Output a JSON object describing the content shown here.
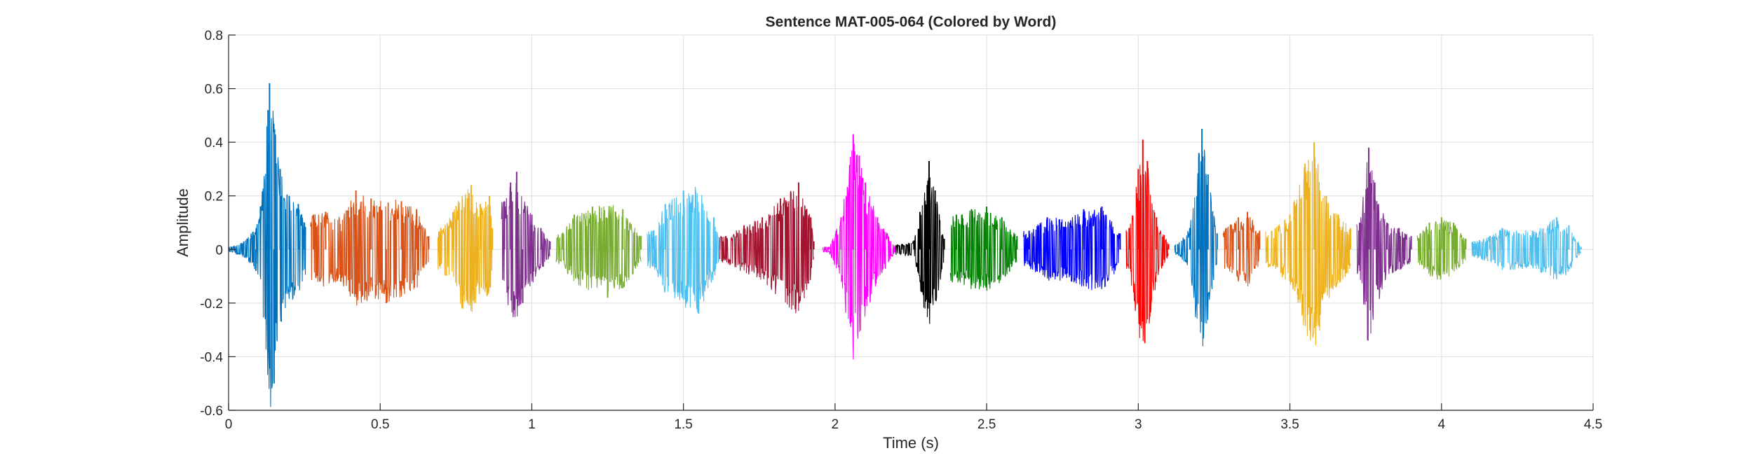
{
  "chart_data": {
    "type": "line",
    "title": "Sentence MAT-005-064 (Colored by Word)",
    "xlabel": "Time (s)",
    "ylabel": "Amplitude",
    "xlim": [
      0,
      4.5
    ],
    "ylim": [
      -0.6,
      0.8
    ],
    "grid": true,
    "xticks": [
      0,
      0.5,
      1,
      1.5,
      2,
      2.5,
      3,
      3.5,
      4,
      4.5
    ],
    "xtick_labels": [
      "0",
      "0.5",
      "1",
      "1.5",
      "2",
      "2.5",
      "3",
      "3.5",
      "4",
      "4.5"
    ],
    "yticks": [
      -0.6,
      -0.4,
      -0.2,
      0,
      0.2,
      0.4,
      0.6,
      0.8
    ],
    "ytick_labels": [
      "-0.6",
      "-0.4",
      "-0.2",
      "0",
      "0.2",
      "0.4",
      "0.6",
      "0.8"
    ],
    "series": [
      {
        "start": 0.0,
        "end": 0.255,
        "color": "#0072BD",
        "peaks": [
          [
            0.01,
            0.01
          ],
          [
            0.05,
            0.03
          ],
          [
            0.09,
            -0.08
          ],
          [
            0.105,
            0.16
          ],
          [
            0.13,
            0.52
          ],
          [
            0.135,
            0.62
          ],
          [
            0.15,
            -0.5
          ],
          [
            0.17,
            0.3
          ],
          [
            0.2,
            0.2
          ],
          [
            0.23,
            0.17
          ],
          [
            0.25,
            0.1
          ]
        ]
      },
      {
        "start": 0.27,
        "end": 0.66,
        "color": "#D95319",
        "peaks": [
          [
            0.28,
            0.13
          ],
          [
            0.32,
            0.14
          ],
          [
            0.37,
            -0.12
          ],
          [
            0.42,
            0.22
          ],
          [
            0.47,
            0.19
          ],
          [
            0.52,
            -0.2
          ],
          [
            0.57,
            0.18
          ],
          [
            0.62,
            0.15
          ],
          [
            0.66,
            0.05
          ]
        ]
      },
      {
        "start": 0.69,
        "end": 0.87,
        "color": "#EDB120",
        "peaks": [
          [
            0.7,
            0.08
          ],
          [
            0.74,
            0.14
          ],
          [
            0.77,
            -0.22
          ],
          [
            0.8,
            0.24
          ],
          [
            0.83,
            0.17
          ],
          [
            0.86,
            0.2
          ],
          [
            0.87,
            0.08
          ]
        ]
      },
      {
        "start": 0.9,
        "end": 1.06,
        "color": "#7E2F8E",
        "peaks": [
          [
            0.91,
            0.18
          ],
          [
            0.93,
            0.25
          ],
          [
            0.95,
            0.29
          ],
          [
            0.97,
            -0.2
          ],
          [
            1.0,
            0.13
          ],
          [
            1.03,
            0.08
          ],
          [
            1.06,
            0.03
          ]
        ]
      },
      {
        "start": 1.08,
        "end": 1.36,
        "color": "#77AC30",
        "peaks": [
          [
            1.1,
            0.06
          ],
          [
            1.14,
            0.13
          ],
          [
            1.2,
            0.16
          ],
          [
            1.25,
            -0.18
          ],
          [
            1.3,
            0.15
          ],
          [
            1.36,
            0.05
          ]
        ]
      },
      {
        "start": 1.38,
        "end": 1.62,
        "color": "#4DBEEE",
        "peaks": [
          [
            1.4,
            0.07
          ],
          [
            1.44,
            0.17
          ],
          [
            1.5,
            0.22
          ],
          [
            1.55,
            -0.24
          ],
          [
            1.6,
            0.12
          ],
          [
            1.62,
            0.04
          ]
        ]
      },
      {
        "start": 1.62,
        "end": 1.93,
        "color": "#A2142F",
        "peaks": [
          [
            1.64,
            0.05
          ],
          [
            1.7,
            0.09
          ],
          [
            1.76,
            0.12
          ],
          [
            1.82,
            0.19
          ],
          [
            1.88,
            0.25
          ],
          [
            1.92,
            0.12
          ],
          [
            1.93,
            0.03
          ]
        ]
      },
      {
        "start": 1.96,
        "end": 2.2,
        "color": "#FF00FF",
        "peaks": [
          [
            1.98,
            0.01
          ],
          [
            2.02,
            0.12
          ],
          [
            2.06,
            0.43
          ],
          [
            2.08,
            0.35
          ],
          [
            2.1,
            0.25
          ],
          [
            2.14,
            0.12
          ],
          [
            2.2,
            0.01
          ]
        ]
      },
      {
        "start": 2.2,
        "end": 2.36,
        "color": "#000000",
        "peaks": [
          [
            2.22,
            0.02
          ],
          [
            2.26,
            0.03
          ],
          [
            2.28,
            0.14
          ],
          [
            2.31,
            0.33
          ],
          [
            2.33,
            0.22
          ],
          [
            2.36,
            0.04
          ]
        ]
      },
      {
        "start": 2.38,
        "end": 2.6,
        "color": "#008000",
        "peaks": [
          [
            2.4,
            0.13
          ],
          [
            2.45,
            0.15
          ],
          [
            2.5,
            0.16
          ],
          [
            2.55,
            0.12
          ],
          [
            2.6,
            0.05
          ]
        ]
      },
      {
        "start": 2.62,
        "end": 2.94,
        "color": "#0000FF",
        "peaks": [
          [
            2.64,
            0.07
          ],
          [
            2.7,
            0.12
          ],
          [
            2.78,
            -0.12
          ],
          [
            2.82,
            0.15
          ],
          [
            2.88,
            0.16
          ],
          [
            2.94,
            0.06
          ]
        ]
      },
      {
        "start": 2.96,
        "end": 3.1,
        "color": "#FF0000",
        "peaks": [
          [
            2.97,
            0.08
          ],
          [
            3.0,
            0.3
          ],
          [
            3.015,
            0.41
          ],
          [
            3.03,
            0.33
          ],
          [
            3.06,
            0.12
          ],
          [
            3.1,
            0.02
          ]
        ]
      },
      {
        "start": 3.12,
        "end": 3.26,
        "color": "#0072BD",
        "peaks": [
          [
            3.13,
            0.02
          ],
          [
            3.17,
            0.08
          ],
          [
            3.2,
            0.36
          ],
          [
            3.21,
            0.45
          ],
          [
            3.23,
            0.28
          ],
          [
            3.26,
            0.06
          ]
        ]
      },
      {
        "start": 3.28,
        "end": 3.4,
        "color": "#D95319",
        "peaks": [
          [
            3.29,
            0.08
          ],
          [
            3.33,
            0.12
          ],
          [
            3.36,
            0.14
          ],
          [
            3.4,
            0.07
          ]
        ]
      },
      {
        "start": 3.42,
        "end": 3.7,
        "color": "#EDB120",
        "peaks": [
          [
            3.44,
            0.07
          ],
          [
            3.5,
            0.13
          ],
          [
            3.55,
            0.32
          ],
          [
            3.58,
            0.4
          ],
          [
            3.62,
            0.2
          ],
          [
            3.66,
            0.13
          ],
          [
            3.7,
            0.08
          ]
        ]
      },
      {
        "start": 3.72,
        "end": 3.9,
        "color": "#7E2F8E",
        "peaks": [
          [
            3.73,
            0.1
          ],
          [
            3.76,
            0.38
          ],
          [
            3.78,
            0.25
          ],
          [
            3.82,
            0.1
          ],
          [
            3.86,
            0.08
          ],
          [
            3.9,
            0.05
          ]
        ]
      },
      {
        "start": 3.92,
        "end": 4.08,
        "color": "#77AC30",
        "peaks": [
          [
            3.93,
            0.06
          ],
          [
            3.96,
            0.1
          ],
          [
            4.0,
            0.12
          ],
          [
            4.04,
            0.1
          ],
          [
            4.08,
            0.04
          ]
        ]
      },
      {
        "start": 4.1,
        "end": 4.46,
        "color": "#4DBEEE",
        "peaks": [
          [
            4.11,
            0.03
          ],
          [
            4.16,
            0.05
          ],
          [
            4.2,
            0.08
          ],
          [
            4.3,
            0.07
          ],
          [
            4.38,
            0.12
          ],
          [
            4.42,
            0.09
          ],
          [
            4.46,
            0.01
          ]
        ]
      }
    ]
  }
}
